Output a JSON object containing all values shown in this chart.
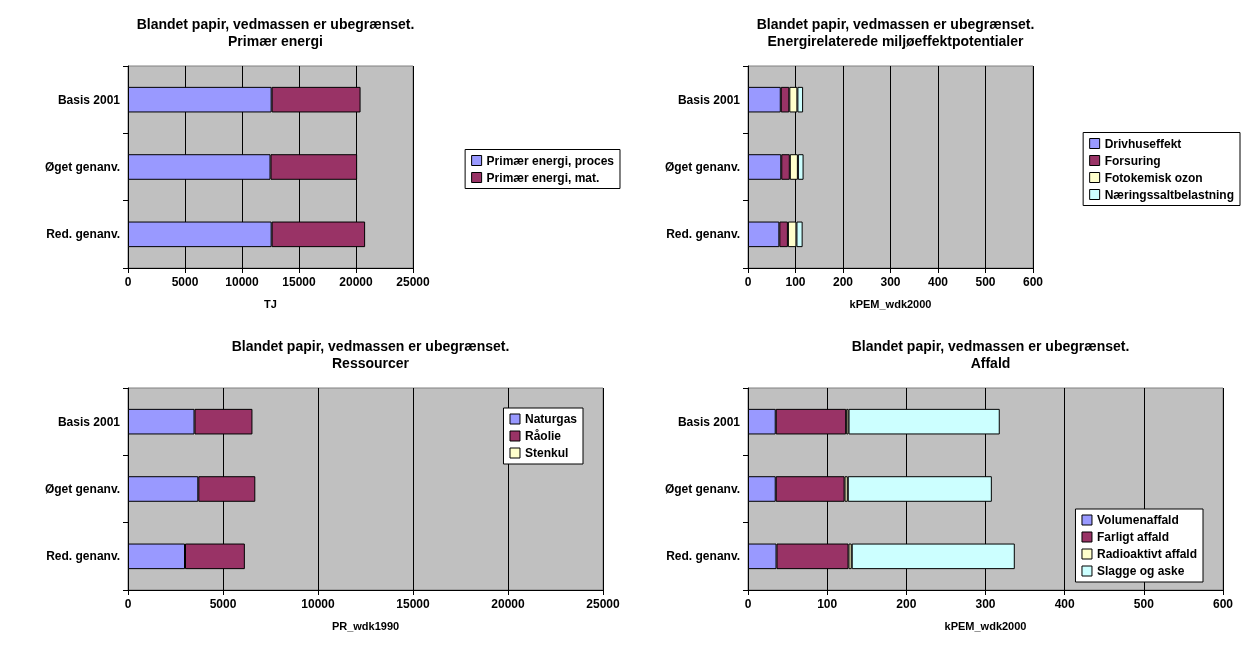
{
  "chart_data": [
    {
      "type": "bar",
      "orientation": "horizontal",
      "stacked": true,
      "title": "Blandet papir, vedmassen er ubegrænset.",
      "subtitle": "Primær energi",
      "xlabel": "TJ",
      "categories": [
        "Basis 2001",
        "Øget genanv.",
        "Red. genanv."
      ],
      "series": [
        {
          "name": "Primær energi, proces",
          "color": "#9999ff",
          "values": [
            12600,
            12500,
            12600
          ]
        },
        {
          "name": "Primær energi, mat.",
          "color": "#993366",
          "values": [
            7800,
            7600,
            8200
          ]
        }
      ],
      "xlim": [
        0,
        25000
      ],
      "xticks": [
        0,
        5000,
        10000,
        15000,
        20000,
        25000
      ],
      "grid": "x",
      "legend": "right"
    },
    {
      "type": "bar",
      "orientation": "horizontal",
      "stacked": true,
      "title": "Blandet papir, vedmassen er ubegrænset.",
      "subtitle": "Energirelaterede miljøeffektpotentialer",
      "xlabel": "kPEM_wdk2000",
      "categories": [
        "Basis 2001",
        "Øget genanv.",
        "Red. genanv."
      ],
      "series": [
        {
          "name": "Drivhuseffekt",
          "color": "#9999ff",
          "values": [
            69,
            70,
            66
          ]
        },
        {
          "name": "Forsuring",
          "color": "#993366",
          "values": [
            18,
            18,
            18
          ]
        },
        {
          "name": "Fotokemisk ozon",
          "color": "#ffffcc",
          "values": [
            17,
            17,
            18
          ]
        },
        {
          "name": "Næringssaltbelastning",
          "color": "#ccffff",
          "values": [
            12,
            12,
            13
          ]
        }
      ],
      "xlim": [
        0,
        600
      ],
      "xticks": [
        0,
        100,
        200,
        300,
        400,
        500,
        600
      ],
      "grid": "x",
      "legend": "right"
    },
    {
      "type": "bar",
      "orientation": "horizontal",
      "stacked": true,
      "title": "Blandet papir, vedmassen er ubegrænset.",
      "subtitle": "Ressourcer",
      "xlabel": "PR_wdk1990",
      "categories": [
        "Basis 2001",
        "Øget genanv.",
        "Red. genanv."
      ],
      "series": [
        {
          "name": "Naturgas",
          "color": "#9999ff",
          "values": [
            3500,
            3700,
            3000
          ]
        },
        {
          "name": "Råolie",
          "color": "#993366",
          "values": [
            3050,
            3000,
            3150
          ]
        },
        {
          "name": "Stenkul",
          "color": "#ffffcc",
          "values": [
            0,
            0,
            0
          ]
        }
      ],
      "xlim": [
        0,
        25000
      ],
      "xticks": [
        0,
        5000,
        10000,
        15000,
        20000,
        25000
      ],
      "grid": "x",
      "legend": "top right"
    },
    {
      "type": "bar",
      "orientation": "horizontal",
      "stacked": true,
      "title": "Blandet papir, vedmassen er ubegrænset.",
      "subtitle": "Affald",
      "xlabel": "kPEM_wdk2000",
      "categories": [
        "Basis 2001",
        "Øget genanv.",
        "Red. genanv."
      ],
      "series": [
        {
          "name": "Volumenaffald",
          "color": "#9999ff",
          "values": [
            35,
            35,
            36
          ]
        },
        {
          "name": "Farligt affald",
          "color": "#993366",
          "values": [
            89,
            87,
            91
          ]
        },
        {
          "name": "Radioaktivt affald",
          "color": "#ffffcc",
          "values": [
            3,
            4,
            4
          ]
        },
        {
          "name": "Slagge og aske",
          "color": "#ccffff",
          "values": [
            191,
            182,
            206
          ]
        }
      ],
      "xlim": [
        0,
        600
      ],
      "xticks": [
        0,
        100,
        200,
        300,
        400,
        500,
        600
      ],
      "grid": "x",
      "legend": "bottom right"
    }
  ]
}
